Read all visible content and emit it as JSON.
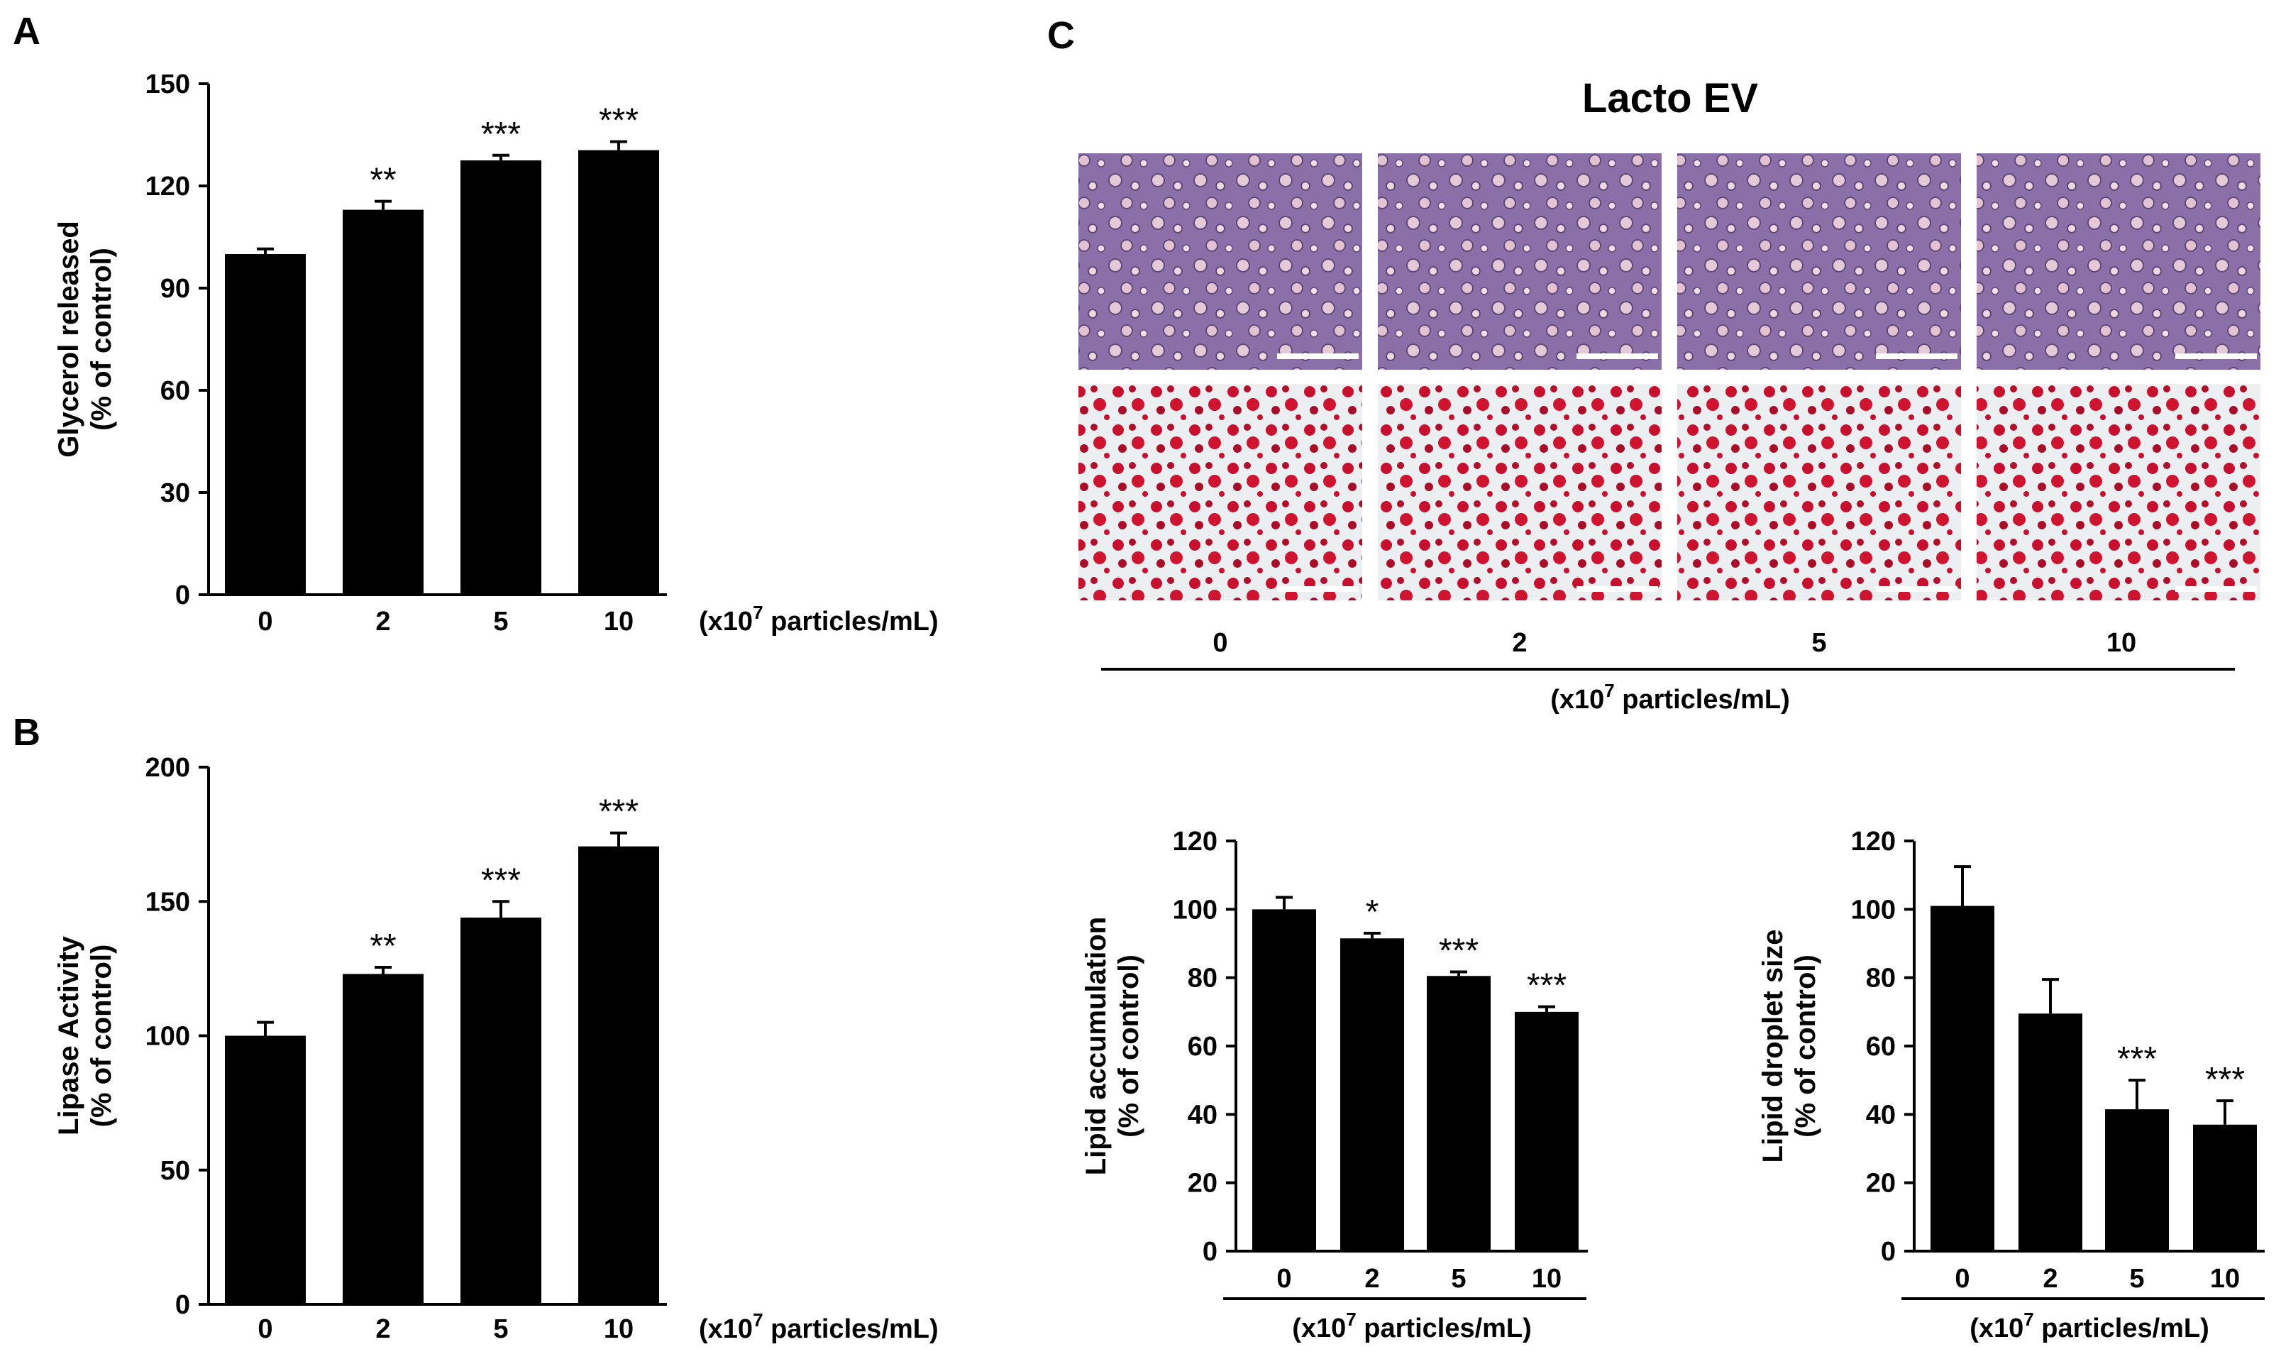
{
  "panels": {
    "a": "A",
    "b": "B",
    "c": "C"
  },
  "micrograph_title": "Lacto EV",
  "micrograph_doses": [
    "0",
    "2",
    "5",
    "10"
  ],
  "micrograph_unit": "(x10",
  "micrograph_unit_exp": "7",
  "micrograph_unit_tail": " particles/mL)",
  "colors": {
    "bars": "#000000",
    "phase_contrast_bg": "#8a6fa8",
    "oil_red_stain": "#c8102e"
  },
  "chart_data": [
    {
      "id": "A",
      "type": "bar",
      "categories": [
        "0",
        "2",
        "5",
        "10"
      ],
      "values": [
        100,
        113,
        127.5,
        130.5
      ],
      "errors": [
        1.5,
        2.5,
        1.5,
        2.5
      ],
      "significance": [
        "",
        "**",
        "***",
        "***"
      ],
      "ylabel_line1": "Glycerol released",
      "ylabel_line2": "(% of control)",
      "xunit_pre": "(x10",
      "xunit_exp": "7",
      "xunit_post": " particles/mL)",
      "ylim": [
        0,
        150
      ],
      "yticks": [
        0,
        30,
        60,
        90,
        120,
        150
      ]
    },
    {
      "id": "B",
      "type": "bar",
      "categories": [
        "0",
        "2",
        "5",
        "10"
      ],
      "values": [
        100,
        123,
        144,
        170.5
      ],
      "errors": [
        5,
        2.5,
        6,
        5
      ],
      "significance": [
        "",
        "**",
        "***",
        "***"
      ],
      "ylabel_line1": "Lipase Activity",
      "ylabel_line2": "(% of control)",
      "xunit_pre": "(x10",
      "xunit_exp": "7",
      "xunit_post": " particles/mL)",
      "ylim": [
        0,
        200
      ],
      "yticks": [
        0,
        50,
        100,
        150,
        200
      ]
    },
    {
      "id": "C1",
      "type": "bar",
      "categories": [
        "0",
        "2",
        "5",
        "10"
      ],
      "values": [
        100,
        91.5,
        80.5,
        70
      ],
      "errors": [
        3.5,
        1.5,
        1.2,
        1.5
      ],
      "significance": [
        "",
        "*",
        "***",
        "***"
      ],
      "ylabel_line1": "Lipid accumulation",
      "ylabel_line2": "(% of control)",
      "xunit_pre": "(x10",
      "xunit_exp": "7",
      "xunit_post": " particles/mL)",
      "ylim": [
        0,
        120
      ],
      "yticks": [
        0,
        20,
        40,
        60,
        80,
        100,
        120
      ]
    },
    {
      "id": "C2",
      "type": "bar",
      "categories": [
        "0",
        "2",
        "5",
        "10"
      ],
      "values": [
        101,
        69.5,
        41.5,
        37
      ],
      "errors": [
        11.5,
        10,
        8.5,
        7
      ],
      "significance": [
        "",
        "",
        "***",
        "***"
      ],
      "ylabel_line1": "Lipid droplet size",
      "ylabel_line2": "(% of control)",
      "xunit_pre": "(x10",
      "xunit_exp": "7",
      "xunit_post": " particles/mL)",
      "ylim": [
        0,
        120
      ],
      "yticks": [
        0,
        20,
        40,
        60,
        80,
        100,
        120
      ]
    }
  ]
}
